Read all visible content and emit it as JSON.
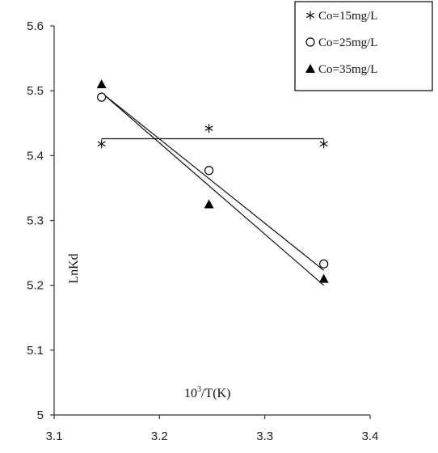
{
  "chart_data": {
    "type": "scatter",
    "xlabel_base": "10",
    "xlabel_sup": "3",
    "xlabel_rest": "/T(K)",
    "ylabel": "LnKd",
    "xlim": [
      3.1,
      3.4
    ],
    "ylim": [
      5.0,
      5.6
    ],
    "x_ticks": [
      "3.1",
      "3.2",
      "3.3",
      "3.4"
    ],
    "y_ticks": [
      "5",
      "5.1",
      "5.2",
      "5.3",
      "5.4",
      "5.5",
      "5.6"
    ],
    "grid": false,
    "legend_position": "top-right",
    "series": [
      {
        "name": "Co=15mg/L",
        "marker": "asterisk",
        "x": [
          3.145,
          3.247,
          3.356
        ],
        "y": [
          5.418,
          5.442,
          5.418
        ],
        "fit": [
          [
            3.145,
            5.426
          ],
          [
            3.356,
            5.426
          ]
        ]
      },
      {
        "name": "Co=25mg/L",
        "marker": "circle",
        "x": [
          3.145,
          3.247,
          3.356
        ],
        "y": [
          5.49,
          5.377,
          5.233
        ],
        "fit": [
          [
            3.145,
            5.497
          ],
          [
            3.356,
            5.223
          ]
        ]
      },
      {
        "name": "Co=35mg/L",
        "marker": "triangle",
        "x": [
          3.145,
          3.247,
          3.356
        ],
        "y": [
          5.51,
          5.325,
          5.21
        ],
        "fit": [
          [
            3.145,
            5.497
          ],
          [
            3.356,
            5.2
          ]
        ]
      }
    ]
  }
}
